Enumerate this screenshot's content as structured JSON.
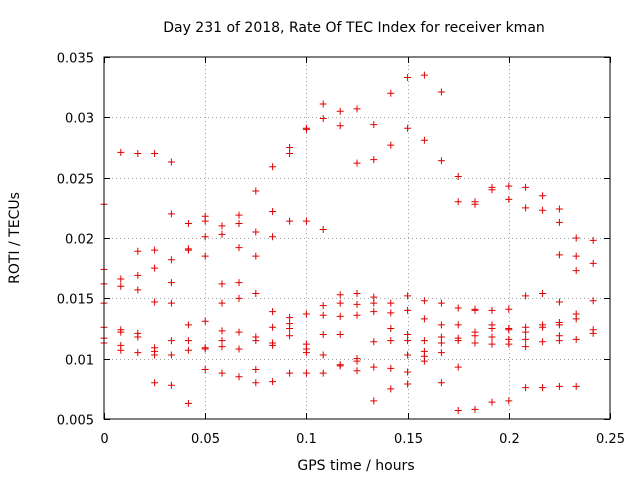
{
  "chart_data": {
    "type": "scatter",
    "title": "Day 231 of 2018, Rate Of TEC Index for receiver kman",
    "xlabel": "GPS time / hours",
    "ylabel": "ROTI / TECUs",
    "xlim": [
      0,
      0.25
    ],
    "ylim": [
      0.005,
      0.035
    ],
    "x_ticks": [
      0,
      0.05,
      0.1,
      0.15,
      0.2,
      0.25
    ],
    "x_tick_labels": [
      "0",
      "0.05",
      "0.1",
      "0.15",
      "0.2",
      "0.25"
    ],
    "y_ticks": [
      0.005,
      0.01,
      0.015,
      0.02,
      0.025,
      0.03,
      0.035
    ],
    "y_tick_labels": [
      "0.005",
      "0.01",
      "0.015",
      "0.02",
      "0.025",
      "0.03",
      "0.035"
    ],
    "grid": true,
    "marker": "+",
    "color": "#e00000",
    "series": [
      {
        "name": "ROTI",
        "points": [
          [
            0,
            0.0228
          ],
          [
            0,
            0.0174
          ],
          [
            0,
            0.0162
          ],
          [
            0,
            0.0146
          ],
          [
            0,
            0.0126
          ],
          [
            0,
            0.0117
          ],
          [
            0,
            0.0113
          ],
          [
            0.0083,
            0.0271
          ],
          [
            0.0083,
            0.0166
          ],
          [
            0.0083,
            0.016
          ],
          [
            0.0083,
            0.0124
          ],
          [
            0.0083,
            0.0122
          ],
          [
            0.0083,
            0.0111
          ],
          [
            0.0083,
            0.0107
          ],
          [
            0.0167,
            0.027
          ],
          [
            0.0167,
            0.0189
          ],
          [
            0.0167,
            0.0169
          ],
          [
            0.0167,
            0.0157
          ],
          [
            0.0167,
            0.0121
          ],
          [
            0.0167,
            0.0118
          ],
          [
            0.0167,
            0.0105
          ],
          [
            0.025,
            0.027
          ],
          [
            0.025,
            0.019
          ],
          [
            0.025,
            0.0175
          ],
          [
            0.025,
            0.0147
          ],
          [
            0.025,
            0.0109
          ],
          [
            0.025,
            0.0106
          ],
          [
            0.025,
            0.0103
          ],
          [
            0.025,
            0.008
          ],
          [
            0.0333,
            0.0263
          ],
          [
            0.0333,
            0.022
          ],
          [
            0.0333,
            0.0182
          ],
          [
            0.0333,
            0.0163
          ],
          [
            0.0333,
            0.0146
          ],
          [
            0.0333,
            0.0115
          ],
          [
            0.0333,
            0.0103
          ],
          [
            0.0333,
            0.0078
          ],
          [
            0.0417,
            0.0212
          ],
          [
            0.0417,
            0.0191
          ],
          [
            0.0417,
            0.019
          ],
          [
            0.0417,
            0.0128
          ],
          [
            0.0417,
            0.0115
          ],
          [
            0.0417,
            0.0107
          ],
          [
            0.0417,
            0.0063
          ],
          [
            0.05,
            0.0218
          ],
          [
            0.05,
            0.0214
          ],
          [
            0.05,
            0.0201
          ],
          [
            0.05,
            0.0185
          ],
          [
            0.05,
            0.0131
          ],
          [
            0.05,
            0.0109
          ],
          [
            0.05,
            0.0108
          ],
          [
            0.05,
            0.0091
          ],
          [
            0.0583,
            0.021
          ],
          [
            0.0583,
            0.0203
          ],
          [
            0.0583,
            0.0162
          ],
          [
            0.0583,
            0.0146
          ],
          [
            0.0583,
            0.0123
          ],
          [
            0.0583,
            0.0115
          ],
          [
            0.0583,
            0.011
          ],
          [
            0.0583,
            0.0088
          ],
          [
            0.0667,
            0.0219
          ],
          [
            0.0667,
            0.0212
          ],
          [
            0.0667,
            0.0192
          ],
          [
            0.0667,
            0.0163
          ],
          [
            0.0667,
            0.015
          ],
          [
            0.0667,
            0.0122
          ],
          [
            0.0667,
            0.0108
          ],
          [
            0.0667,
            0.0085
          ],
          [
            0.075,
            0.0239
          ],
          [
            0.075,
            0.0205
          ],
          [
            0.075,
            0.0185
          ],
          [
            0.075,
            0.0154
          ],
          [
            0.075,
            0.0118
          ],
          [
            0.075,
            0.0115
          ],
          [
            0.075,
            0.0091
          ],
          [
            0.075,
            0.008
          ],
          [
            0.0833,
            0.0259
          ],
          [
            0.0833,
            0.0222
          ],
          [
            0.0833,
            0.0201
          ],
          [
            0.0833,
            0.0139
          ],
          [
            0.0833,
            0.0126
          ],
          [
            0.0833,
            0.0113
          ],
          [
            0.0833,
            0.0111
          ],
          [
            0.0833,
            0.0081
          ],
          [
            0.0917,
            0.0275
          ],
          [
            0.0917,
            0.027
          ],
          [
            0.0917,
            0.0214
          ],
          [
            0.0917,
            0.0134
          ],
          [
            0.0917,
            0.0129
          ],
          [
            0.0917,
            0.0125
          ],
          [
            0.0917,
            0.0119
          ],
          [
            0.0917,
            0.0088
          ],
          [
            0.1,
            0.0291
          ],
          [
            0.1,
            0.029
          ],
          [
            0.1,
            0.0214
          ],
          [
            0.1,
            0.0137
          ],
          [
            0.1,
            0.0112
          ],
          [
            0.1,
            0.0108
          ],
          [
            0.1,
            0.0105
          ],
          [
            0.1,
            0.0088
          ],
          [
            0.1083,
            0.0311
          ],
          [
            0.1083,
            0.0299
          ],
          [
            0.1083,
            0.0207
          ],
          [
            0.1083,
            0.0144
          ],
          [
            0.1083,
            0.0136
          ],
          [
            0.1083,
            0.012
          ],
          [
            0.1083,
            0.0103
          ],
          [
            0.1083,
            0.0088
          ],
          [
            0.1167,
            0.0305
          ],
          [
            0.1167,
            0.0293
          ],
          [
            0.1167,
            0.0153
          ],
          [
            0.1167,
            0.0146
          ],
          [
            0.1167,
            0.0135
          ],
          [
            0.1167,
            0.012
          ],
          [
            0.1167,
            0.0095
          ],
          [
            0.1167,
            0.0094
          ],
          [
            0.125,
            0.0307
          ],
          [
            0.125,
            0.0262
          ],
          [
            0.125,
            0.0154
          ],
          [
            0.125,
            0.0145
          ],
          [
            0.125,
            0.0136
          ],
          [
            0.125,
            0.01
          ],
          [
            0.125,
            0.0098
          ],
          [
            0.125,
            0.009
          ],
          [
            0.1333,
            0.0294
          ],
          [
            0.1333,
            0.0265
          ],
          [
            0.1333,
            0.0151
          ],
          [
            0.1333,
            0.0146
          ],
          [
            0.1333,
            0.0139
          ],
          [
            0.1333,
            0.0114
          ],
          [
            0.1333,
            0.0093
          ],
          [
            0.1333,
            0.0065
          ],
          [
            0.1417,
            0.032
          ],
          [
            0.1417,
            0.0277
          ],
          [
            0.1417,
            0.0146
          ],
          [
            0.1417,
            0.0138
          ],
          [
            0.1417,
            0.0125
          ],
          [
            0.1417,
            0.0115
          ],
          [
            0.1417,
            0.0092
          ],
          [
            0.1417,
            0.0075
          ],
          [
            0.15,
            0.0333
          ],
          [
            0.15,
            0.0291
          ],
          [
            0.15,
            0.0152
          ],
          [
            0.15,
            0.014
          ],
          [
            0.15,
            0.012
          ],
          [
            0.15,
            0.0115
          ],
          [
            0.15,
            0.0103
          ],
          [
            0.15,
            0.0089
          ],
          [
            0.15,
            0.0079
          ],
          [
            0.1583,
            0.0335
          ],
          [
            0.1583,
            0.0281
          ],
          [
            0.1583,
            0.0148
          ],
          [
            0.1583,
            0.0133
          ],
          [
            0.1583,
            0.0115
          ],
          [
            0.1583,
            0.0106
          ],
          [
            0.1583,
            0.0102
          ],
          [
            0.1583,
            0.0098
          ],
          [
            0.1667,
            0.0321
          ],
          [
            0.1667,
            0.0264
          ],
          [
            0.1667,
            0.0146
          ],
          [
            0.1667,
            0.0128
          ],
          [
            0.1667,
            0.0118
          ],
          [
            0.1667,
            0.0113
          ],
          [
            0.1667,
            0.0105
          ],
          [
            0.1667,
            0.008
          ],
          [
            0.175,
            0.0251
          ],
          [
            0.175,
            0.023
          ],
          [
            0.175,
            0.0142
          ],
          [
            0.175,
            0.0128
          ],
          [
            0.175,
            0.0117
          ],
          [
            0.175,
            0.0115
          ],
          [
            0.175,
            0.0093
          ],
          [
            0.175,
            0.0057
          ],
          [
            0.1833,
            0.023
          ],
          [
            0.1833,
            0.0228
          ],
          [
            0.1833,
            0.0141
          ],
          [
            0.1833,
            0.014
          ],
          [
            0.1833,
            0.0122
          ],
          [
            0.1833,
            0.0119
          ],
          [
            0.1833,
            0.0113
          ],
          [
            0.1833,
            0.0058
          ],
          [
            0.1917,
            0.0242
          ],
          [
            0.1917,
            0.024
          ],
          [
            0.1917,
            0.014
          ],
          [
            0.1917,
            0.0128
          ],
          [
            0.1917,
            0.0125
          ],
          [
            0.1917,
            0.0118
          ],
          [
            0.1917,
            0.0112
          ],
          [
            0.1917,
            0.0064
          ],
          [
            0.2,
            0.0243
          ],
          [
            0.2,
            0.0232
          ],
          [
            0.2,
            0.0141
          ],
          [
            0.2,
            0.0125
          ],
          [
            0.2,
            0.0124
          ],
          [
            0.2,
            0.0116
          ],
          [
            0.2,
            0.0112
          ],
          [
            0.2,
            0.0065
          ],
          [
            0.2083,
            0.0242
          ],
          [
            0.2083,
            0.0225
          ],
          [
            0.2083,
            0.0152
          ],
          [
            0.2083,
            0.0126
          ],
          [
            0.2083,
            0.0122
          ],
          [
            0.2083,
            0.0116
          ],
          [
            0.2083,
            0.011
          ],
          [
            0.2083,
            0.0076
          ],
          [
            0.2167,
            0.0235
          ],
          [
            0.2167,
            0.0223
          ],
          [
            0.2167,
            0.0154
          ],
          [
            0.2167,
            0.0128
          ],
          [
            0.2167,
            0.0126
          ],
          [
            0.2167,
            0.0114
          ],
          [
            0.2167,
            0.0076
          ],
          [
            0.225,
            0.0224
          ],
          [
            0.225,
            0.0213
          ],
          [
            0.225,
            0.0186
          ],
          [
            0.225,
            0.0147
          ],
          [
            0.225,
            0.013
          ],
          [
            0.225,
            0.0128
          ],
          [
            0.225,
            0.0119
          ],
          [
            0.225,
            0.0115
          ],
          [
            0.225,
            0.0077
          ],
          [
            0.2333,
            0.02
          ],
          [
            0.2333,
            0.0185
          ],
          [
            0.2333,
            0.0173
          ],
          [
            0.2333,
            0.0137
          ],
          [
            0.2333,
            0.0133
          ],
          [
            0.2333,
            0.0116
          ],
          [
            0.2333,
            0.0077
          ],
          [
            0.2417,
            0.0198
          ],
          [
            0.2417,
            0.0179
          ],
          [
            0.2417,
            0.0148
          ],
          [
            0.2417,
            0.0124
          ],
          [
            0.2417,
            0.0121
          ]
        ]
      }
    ]
  }
}
